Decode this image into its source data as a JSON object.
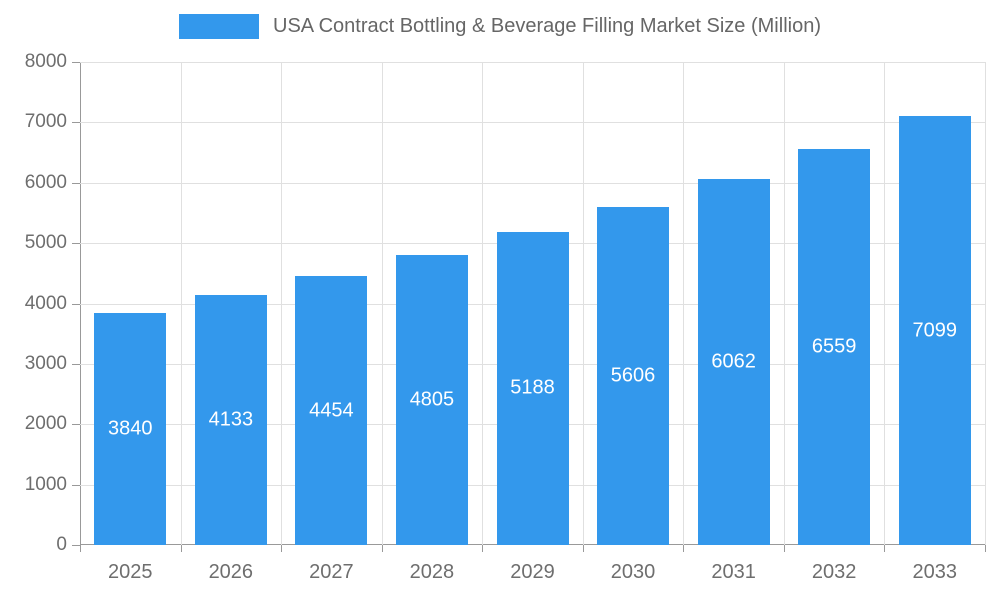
{
  "chart_data": {
    "type": "bar",
    "title": "USA Contract Bottling & Beverage Filling Market Size (Million)",
    "categories": [
      "2025",
      "2026",
      "2027",
      "2028",
      "2029",
      "2030",
      "2031",
      "2032",
      "2033"
    ],
    "values": [
      3840,
      4133,
      4454,
      4805,
      5188,
      5606,
      6062,
      6559,
      7099
    ],
    "xlabel": "",
    "ylabel": "",
    "ylim": [
      0,
      8000
    ],
    "ytick_step": 1000,
    "grid": true,
    "legend_position": "top",
    "bar_color": "#3398ec",
    "value_label_color": "#ffffff",
    "axis_color": "#999999",
    "grid_color": "#e0e0e0",
    "tick_label_color": "#6e6e6e"
  }
}
